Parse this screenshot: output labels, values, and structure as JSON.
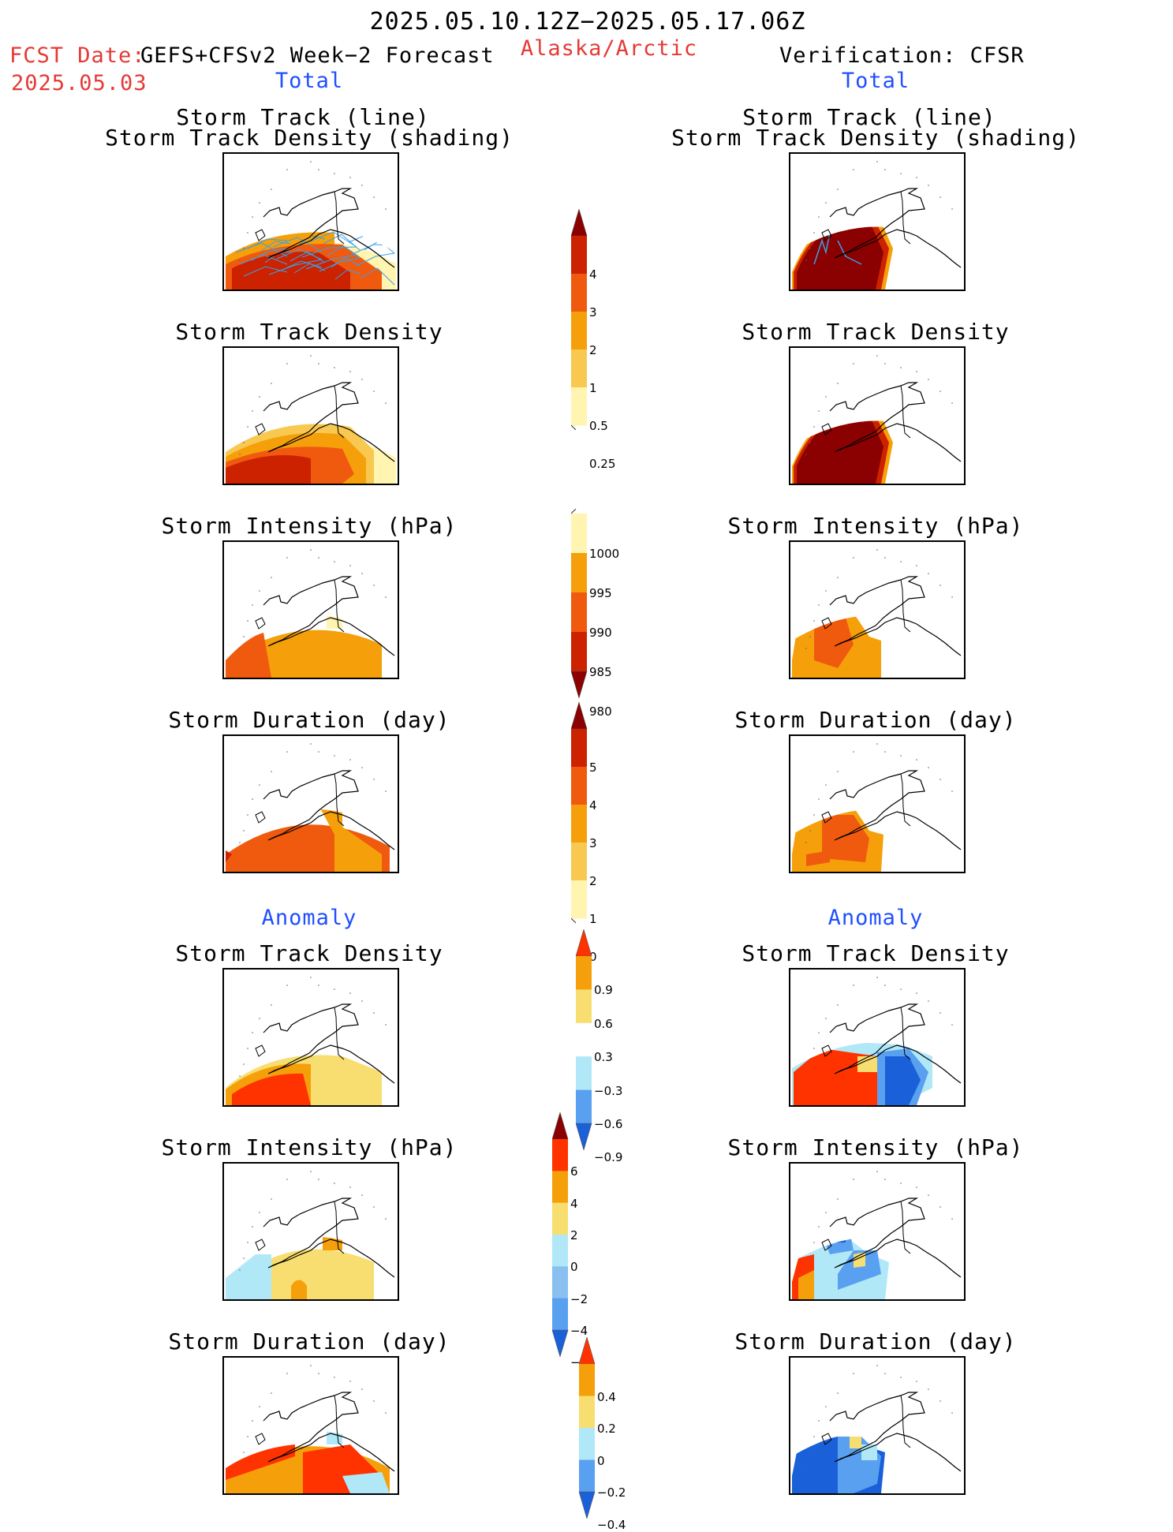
{
  "header": {
    "date_range": "2025.05.10.12Z−2025.05.17.06Z",
    "region": "Alaska/Arctic",
    "fcst_label": "FCST Date:",
    "fcst_model": "GEFS+CFSv2 Week−2 Forecast",
    "fcst_date": "2025.05.03",
    "verification": "Verification: CFSR"
  },
  "left": {
    "total_label": "Total",
    "anomaly_label": "Anomaly",
    "panels": [
      {
        "title1": "Storm Track (line)",
        "title2": "Storm Track Density (shading)"
      },
      {
        "title1": "Storm Track Density"
      },
      {
        "title1": "Storm Intensity (hPa)"
      },
      {
        "title1": "Storm Duration (day)"
      },
      {
        "title1": "Storm Track Density"
      },
      {
        "title1": "Storm Intensity (hPa)"
      },
      {
        "title1": "Storm Duration (day)"
      }
    ]
  },
  "right": {
    "total_label": "Total",
    "anomaly_label": "Anomaly",
    "panels": [
      {
        "title1": "Storm Track (line)",
        "title2": "Storm Track Density (shading)"
      },
      {
        "title1": "Storm Track Density"
      },
      {
        "title1": "Storm Intensity (hPa)"
      },
      {
        "title1": "Storm Duration (day)"
      },
      {
        "title1": "Storm Track Density"
      },
      {
        "title1": "Storm Intensity (hPa)"
      },
      {
        "title1": "Storm Duration (day)"
      }
    ]
  },
  "colorbars": {
    "density": {
      "labels": [
        "4",
        "3",
        "2",
        "1",
        "0.5",
        "0.25"
      ],
      "colors": [
        "#8b0000",
        "#cc2200",
        "#f05a0f",
        "#f5a00a",
        "#f8c850",
        "#fff5b0"
      ]
    },
    "intensity": {
      "labels": [
        "1000",
        "995",
        "990",
        "985",
        "980"
      ],
      "colors": [
        "#fff5b0",
        "#f5a00a",
        "#f05a0f",
        "#cc2200",
        "#8b0000"
      ]
    },
    "duration": {
      "labels": [
        "5",
        "4",
        "3",
        "2",
        "1",
        "0"
      ],
      "colors": [
        "#8b0000",
        "#cc2200",
        "#f05a0f",
        "#f5a00a",
        "#f8c850",
        "#fff5b0"
      ]
    },
    "anom_density": {
      "labels": [
        "0.9",
        "0.6",
        "0.3",
        "−0.3",
        "−0.6",
        "−0.9"
      ],
      "colors": [
        "#ff3300",
        "#f5a00a",
        "#f8de70",
        "#ffffff",
        "#b0e8f8",
        "#5aa0f0",
        "#1a60d8"
      ]
    },
    "anom_intensity": {
      "labels": [
        "6",
        "4",
        "2",
        "0",
        "−2",
        "−4",
        "−6"
      ],
      "colors": [
        "#8b0000",
        "#ff3300",
        "#f5a00a",
        "#f8de70",
        "#b0e8f8",
        "#8ac0f0",
        "#5aa0f0",
        "#1a60d8"
      ]
    },
    "anom_duration": {
      "labels": [
        "0.4",
        "0.2",
        "0",
        "−0.2",
        "−0.4"
      ],
      "colors": [
        "#ff3300",
        "#f5a00a",
        "#f8de70",
        "#b0e8f8",
        "#5aa0f0",
        "#1a60d8"
      ]
    }
  },
  "colors": {
    "title_red": "#e53935",
    "label_blue": "#1f4fff"
  }
}
